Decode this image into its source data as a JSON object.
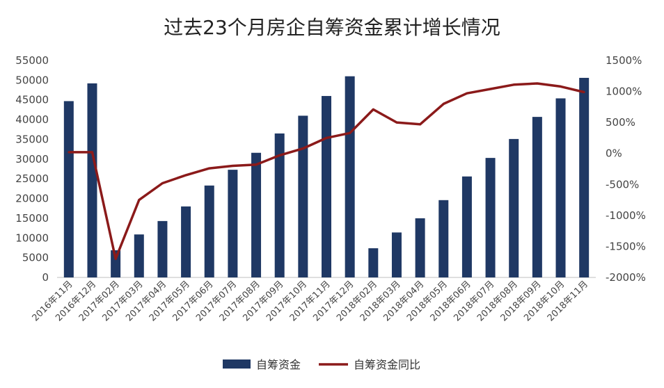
{
  "chart_data": {
    "type": "bar",
    "title": "过去23个月房企自筹资金累计增长情况",
    "categories": [
      "2016年11月",
      "2016年12月",
      "2017年02月",
      "2017年03月",
      "2017年04月",
      "2017年05月",
      "2017年06月",
      "2017年07月",
      "2017年08月",
      "2017年09月",
      "2017年10月",
      "2017年11月",
      "2017年12月",
      "2018年02月",
      "2018年03月",
      "2018年04月",
      "2018年05月",
      "2018年06月",
      "2018年07月",
      "2018年08月",
      "2018年09月",
      "2018年10月",
      "2018年11月"
    ],
    "series": [
      {
        "name": "自筹资金",
        "type": "bar",
        "axis": "left",
        "color": "#1f3864",
        "values": [
          44700,
          49200,
          6900,
          10900,
          14300,
          18000,
          23300,
          27300,
          31600,
          36500,
          41000,
          46000,
          51000,
          7400,
          11400,
          15000,
          19600,
          25600,
          30300,
          35100,
          40700,
          45400,
          50600
        ]
      },
      {
        "name": "自筹资金同比",
        "type": "line",
        "axis": "right",
        "color": "#8b1a1a",
        "unit": "%",
        "values": [
          20,
          20,
          -1700,
          -750,
          -480,
          -350,
          -240,
          -200,
          -180,
          -30,
          80,
          250,
          330,
          710,
          500,
          470,
          800,
          970,
          1040,
          1110,
          1130,
          1080,
          990
        ]
      }
    ],
    "y_left": {
      "min": 0,
      "max": 55000,
      "step": 5000,
      "tick_labels": [
        "0",
        "5000",
        "10000",
        "15000",
        "20000",
        "25000",
        "30000",
        "35000",
        "40000",
        "45000",
        "50000",
        "55000"
      ]
    },
    "y_right": {
      "min": -2000,
      "max": 1500,
      "step": 500,
      "tick_labels": [
        "-2000%",
        "-1500%",
        "-1000%",
        "-500%",
        "0%",
        "500%",
        "1000%",
        "1500%"
      ]
    },
    "grid": false,
    "legend_position": "bottom"
  }
}
